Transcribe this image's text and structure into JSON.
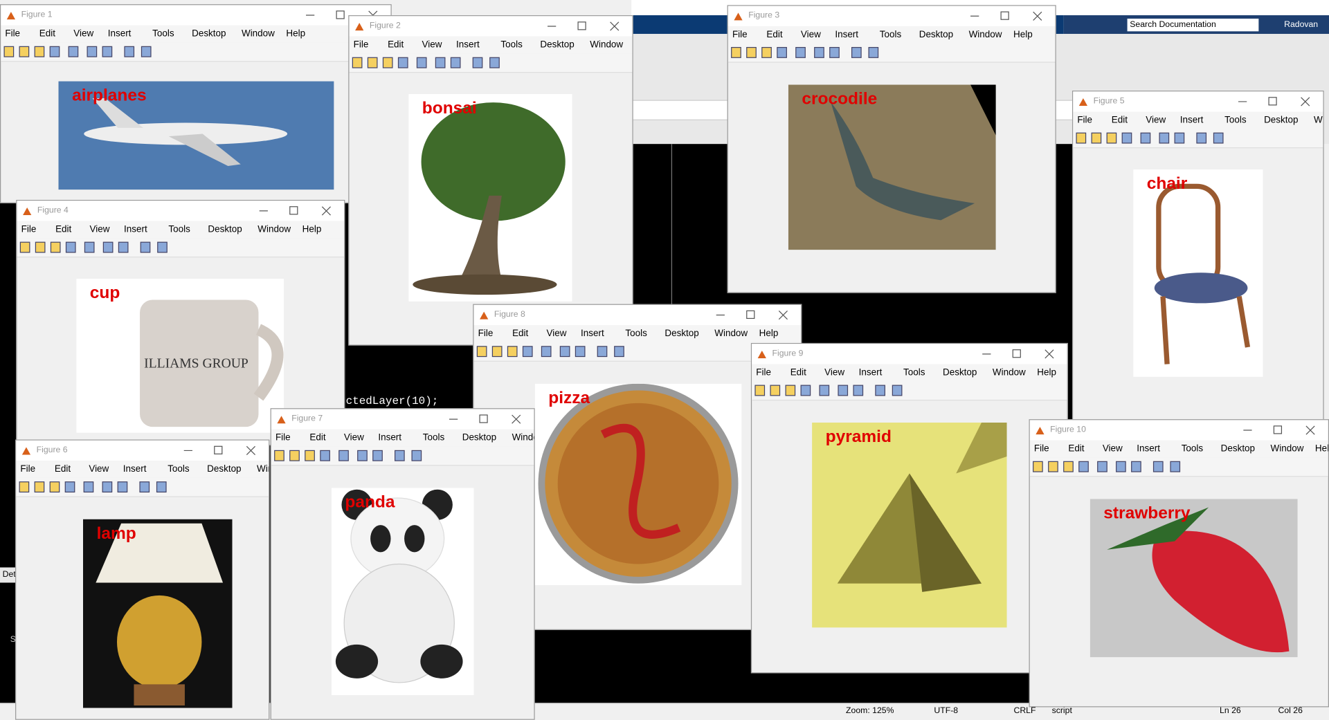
{
  "windows": [
    {
      "title": "Figure 1",
      "label": "airplanes"
    },
    {
      "title": "Figure 3",
      "label": "crocodile"
    },
    {
      "title": "Figure 5",
      "label": "chair"
    },
    {
      "title": "Figure 2",
      "label": "bonsai"
    },
    {
      "title": "Figure 4",
      "label": "cup"
    },
    {
      "title": "Figure 8",
      "label": "pizza"
    },
    {
      "title": "Figure 9",
      "label": "pyramid"
    },
    {
      "title": "Figure 10",
      "label": "strawberry"
    },
    {
      "title": "Figure 6",
      "label": "lamp"
    },
    {
      "title": "Figure 7",
      "label": "panda"
    }
  ],
  "menu": [
    "File",
    "Edit",
    "View",
    "Insert",
    "Tools",
    "Desktop",
    "Window",
    "Help"
  ],
  "matlab": {
    "search": "Search Documentation",
    "user": "Radovan",
    "code": "ctedLayer(10);",
    "panel": "Det",
    "side": "S",
    "status": [
      "Zoom: 125%",
      "UTF-8",
      "CRLF",
      "script",
      "Ln 26",
      "Col 26"
    ]
  }
}
